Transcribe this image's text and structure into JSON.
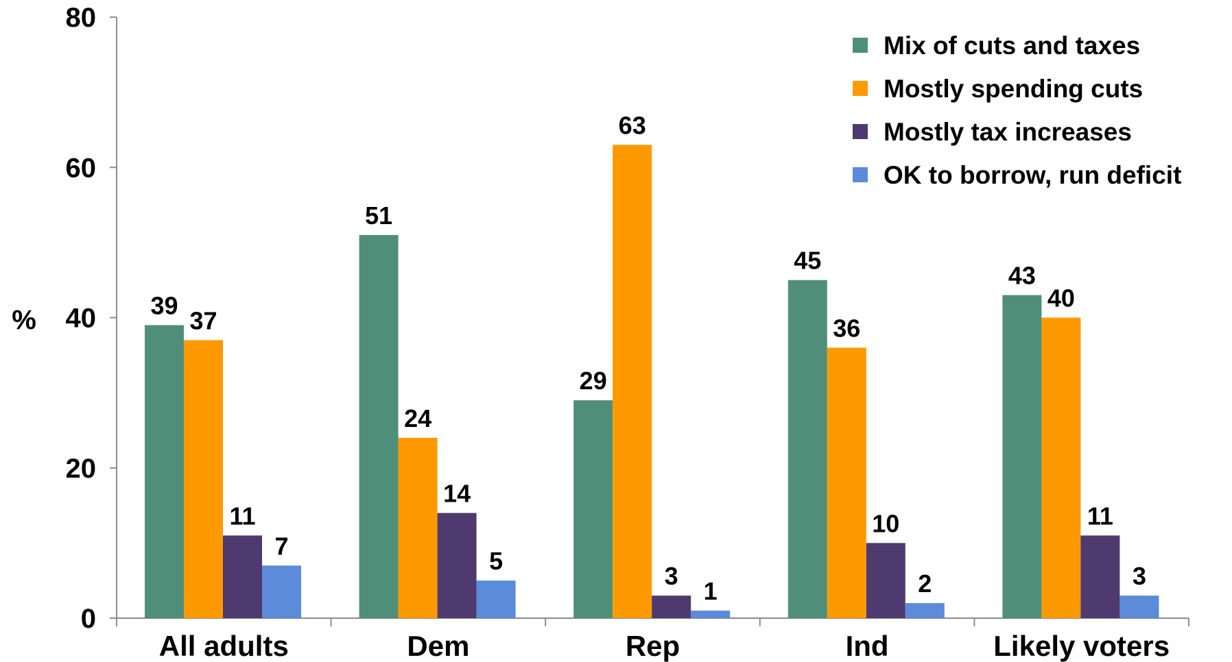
{
  "chart_data": {
    "type": "bar",
    "ylabel": "%",
    "ylim": [
      0,
      80
    ],
    "yticks": [
      0,
      20,
      40,
      60,
      80
    ],
    "categories": [
      "All adults",
      "Dem",
      "Rep",
      "Ind",
      "Likely voters"
    ],
    "series": [
      {
        "name": "Mix of cuts and taxes",
        "color": "#4f8f7a",
        "values": [
          39,
          51,
          29,
          45,
          43
        ]
      },
      {
        "name": "Mostly spending cuts",
        "color": "#ff9900",
        "values": [
          37,
          24,
          63,
          36,
          40
        ]
      },
      {
        "name": "Mostly tax increases",
        "color": "#4e3a6e",
        "values": [
          11,
          14,
          3,
          10,
          11
        ]
      },
      {
        "name": "OK to borrow, run deficit",
        "color": "#5b8bd9",
        "values": [
          7,
          5,
          1,
          2,
          3
        ]
      }
    ],
    "legend_position": "top-right",
    "grid": false
  }
}
